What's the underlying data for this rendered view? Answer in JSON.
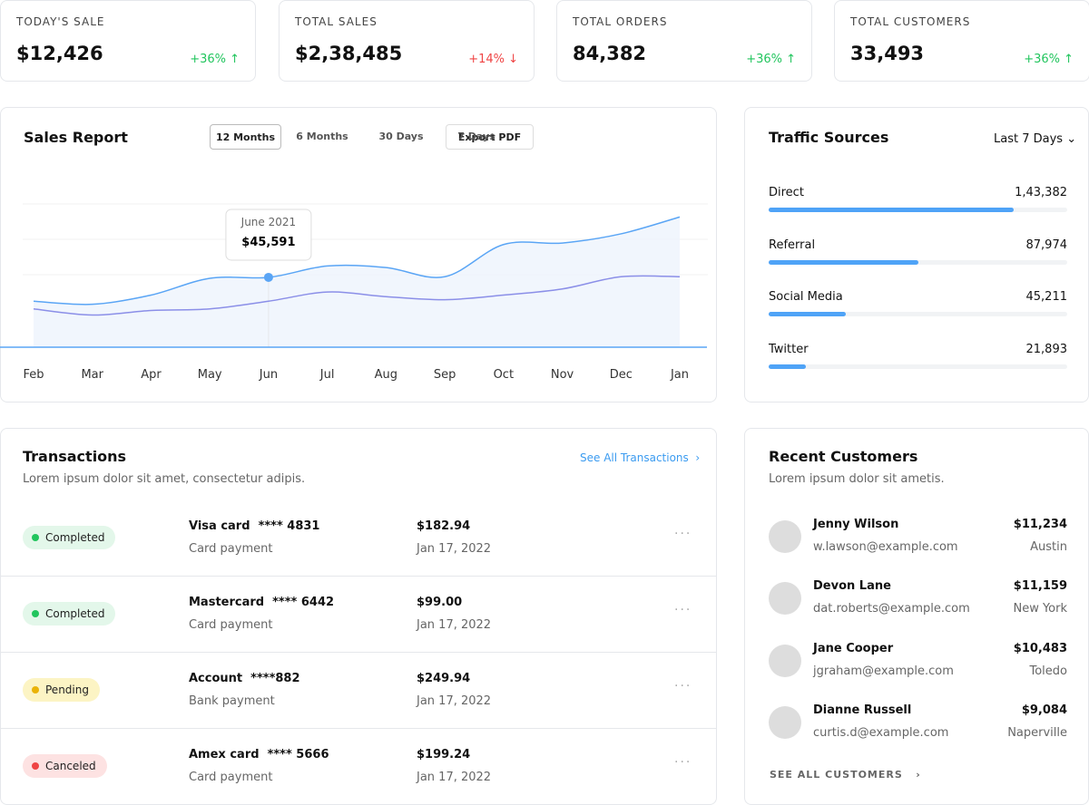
{
  "stats": [
    {
      "label": "TODAY'S SALE",
      "value": "$12,426",
      "change": "+36% ↑",
      "color": "#22c55e"
    },
    {
      "label": "TOTAL SALES",
      "value": "$2,38,485",
      "change": "+14% ↓",
      "color": "#ef4444"
    },
    {
      "label": "TOTAL ORDERS",
      "value": "84,382",
      "change": "+36% ↑",
      "color": "#22c55e"
    },
    {
      "label": "TOTAL CUSTOMERS",
      "value": "33,493",
      "change": "+36% ↑",
      "color": "#22c55e"
    }
  ],
  "sales_report": {
    "title": "Sales Report",
    "tabs": [
      "12 Months",
      "6 Months",
      "30 Days",
      "7 Days"
    ],
    "export": "Export PDF",
    "tooltip": {
      "label": "June 2021",
      "value": "$45,591"
    },
    "chart": {
      "type": "area",
      "categories": [
        "Feb",
        "Mar",
        "Apr",
        "May",
        "Jun",
        "Jul",
        "Aug",
        "Sep",
        "Oct",
        "Nov",
        "Dec",
        "Jan"
      ],
      "series": [
        {
          "color": "#5aa5f5",
          "values": [
            30000,
            28000,
            34000,
            45000,
            45591,
            53000,
            52000,
            46000,
            67000,
            68000,
            74000,
            85000
          ]
        },
        {
          "color": "#8b8fe8",
          "values": [
            25000,
            21000,
            24000,
            25000,
            30000,
            36000,
            33000,
            31000,
            34000,
            38000,
            46000,
            46000
          ]
        }
      ],
      "ylim": [
        0,
        100000
      ]
    }
  },
  "traffic": {
    "title": "Traffic Sources",
    "period": "Last 7 Days",
    "xlim": [
      0,
      175000
    ],
    "color": "#4fa3f7",
    "sources": [
      {
        "name": "Direct",
        "value": 143382,
        "value_label": "1,43,382"
      },
      {
        "name": "Referral",
        "value": 87974,
        "value_label": "87,974"
      },
      {
        "name": "Social Media",
        "value": 45211,
        "value_label": "45,211"
      },
      {
        "name": "Twitter",
        "value": 21893,
        "value_label": "21,893"
      }
    ]
  },
  "transactions": {
    "title": "Transactions",
    "subtitle": "Lorem ipsum dolor sit amet, consectetur adipis.",
    "link": "See All Transactions",
    "rows": [
      {
        "status": "Completed",
        "color": "#22c55e",
        "background": "#e3f7ea",
        "method": "Visa card  **** 4831",
        "type": "Card payment",
        "amount": "$182.94",
        "date": "Jan 17, 2022"
      },
      {
        "status": "Completed",
        "color": "#22c55e",
        "background": "#e3f7ea",
        "method": "Mastercard  **** 6442",
        "type": "Card payment",
        "amount": "$99.00",
        "date": "Jan 17, 2022"
      },
      {
        "status": "Pending",
        "color": "#eab308",
        "background": "#fcf4c4",
        "method": "Account  ****882",
        "type": "Bank payment",
        "amount": "$249.94",
        "date": "Jan 17, 2022"
      },
      {
        "status": "Canceled",
        "color": "#ef4444",
        "background": "#fde2e2",
        "method": "Amex card  **** 5666",
        "type": "Card payment",
        "amount": "$199.24",
        "date": "Jan 17, 2022"
      }
    ]
  },
  "customers": {
    "title": "Recent Customers",
    "subtitle": "Lorem ipsum dolor sit ametis.",
    "link": "SEE ALL CUSTOMERS",
    "rows": [
      {
        "name": "Jenny Wilson",
        "email": "w.lawson@example.com",
        "amount": "$11,234",
        "city": "Austin"
      },
      {
        "name": "Devon Lane",
        "email": "dat.roberts@example.com",
        "amount": "$11,159",
        "city": "New York"
      },
      {
        "name": "Jane Cooper",
        "email": "jgraham@example.com",
        "amount": "$10,483",
        "city": "Toledo"
      },
      {
        "name": "Dianne Russell",
        "email": "curtis.d@example.com",
        "amount": "$9,084",
        "city": "Naperville"
      }
    ]
  }
}
